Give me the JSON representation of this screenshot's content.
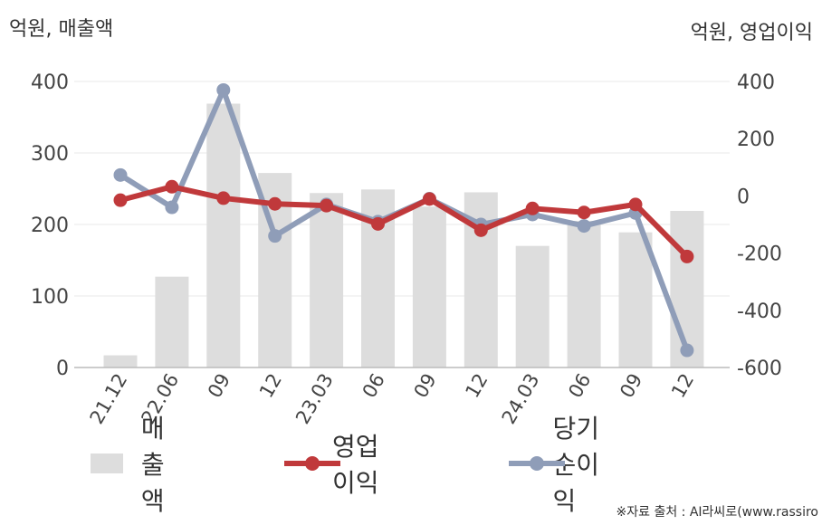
{
  "units": {
    "left": "억원, 매출액",
    "right": "억원, 영업이익"
  },
  "legend": {
    "revenue": "매출액",
    "operating_profit": "영업이익",
    "net_income": "당기순이익"
  },
  "source": "※자료 출처 : AI라씨로(www.rassiro",
  "colors": {
    "revenue": "#dddddd",
    "operating_profit": "#c0393b",
    "net_income": "#8f9db8"
  },
  "chart_data": {
    "type": "bar",
    "categories": [
      "21.12",
      "22.06",
      "09",
      "12",
      "23.03",
      "06",
      "09",
      "12",
      "24.03",
      "06",
      "09",
      "12"
    ],
    "left_axis": {
      "ylim": [
        0,
        400
      ],
      "ticks": [
        "0",
        "100",
        "200",
        "300",
        "400"
      ]
    },
    "right_axis": {
      "ylim": [
        -600,
        400
      ],
      "ticks": [
        "-600",
        "-400",
        "-200",
        "0",
        "200",
        "400"
      ]
    },
    "grid": true,
    "legend_position": "bottom",
    "series": [
      {
        "name": "매출액",
        "type": "bar",
        "axis": "left",
        "values": [
          17,
          127,
          369,
          272,
          244,
          249,
          225,
          245,
          170,
          205,
          189,
          219
        ]
      },
      {
        "name": "영업이익",
        "type": "line",
        "axis": "right",
        "values": [
          -15,
          32,
          -8,
          -28,
          -34,
          -98,
          -11,
          -120,
          -44,
          -58,
          -30,
          -212
        ]
      },
      {
        "name": "당기순이익",
        "type": "line",
        "axis": "right",
        "values": [
          73,
          -40,
          370,
          -140,
          -30,
          -90,
          -10,
          -100,
          -65,
          -105,
          -60,
          -540
        ]
      }
    ]
  }
}
